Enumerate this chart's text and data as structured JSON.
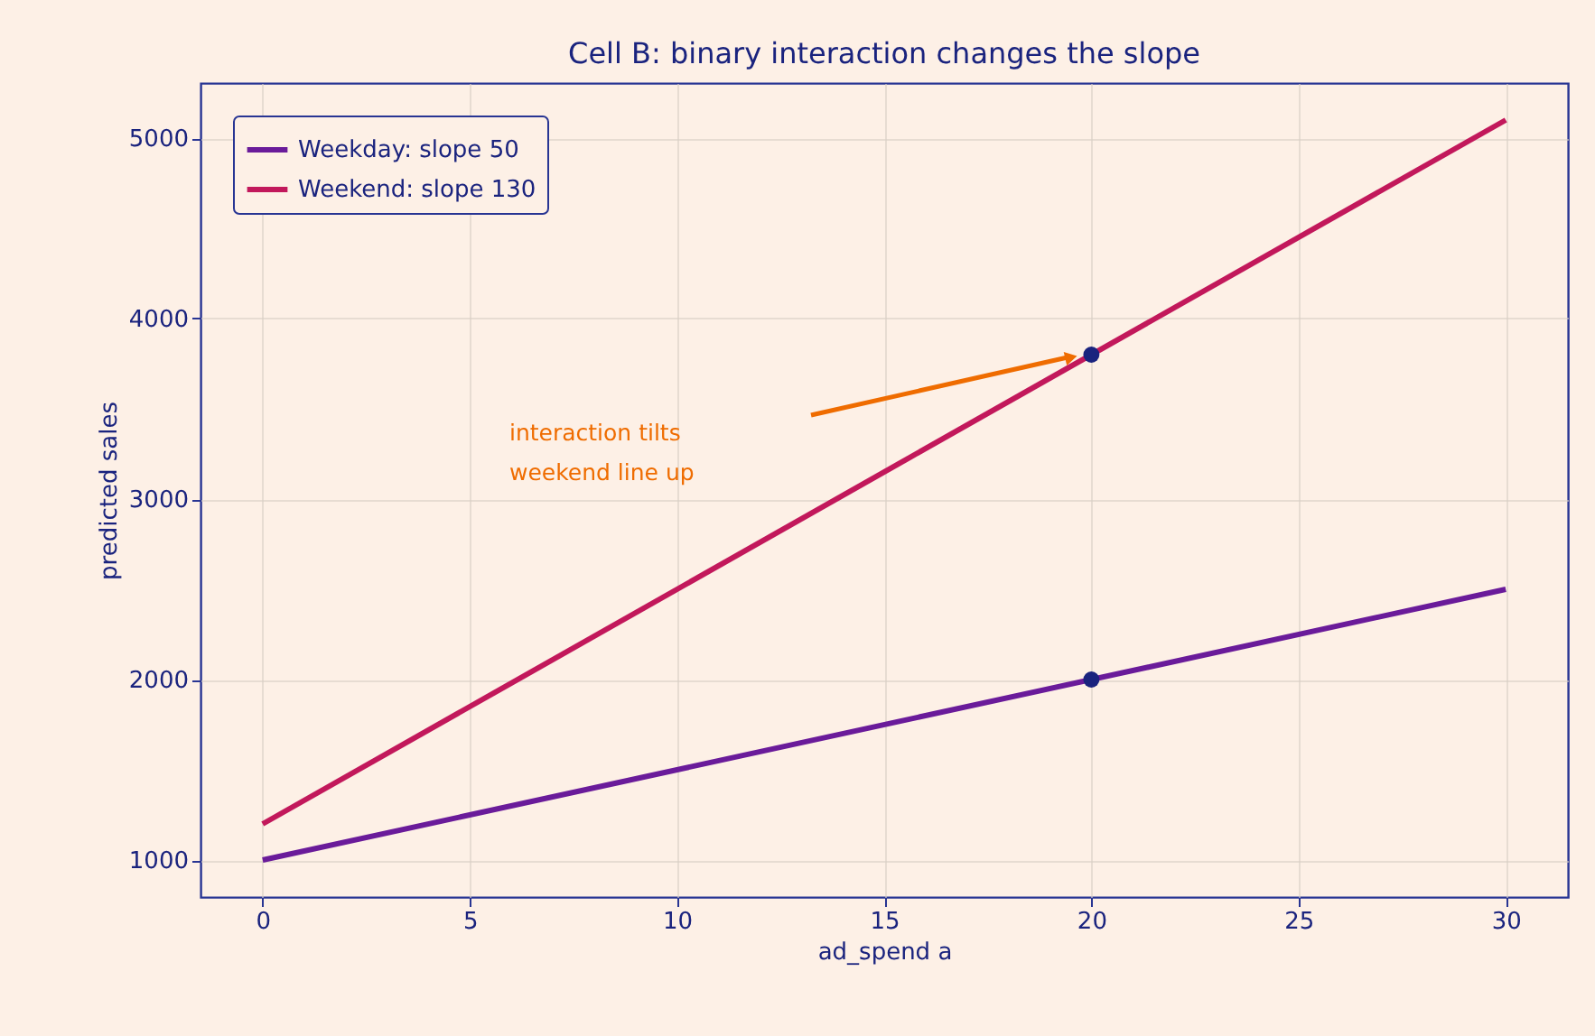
{
  "chart_data": {
    "type": "line",
    "title": "Cell B: binary interaction changes the slope",
    "xlabel": "ad_spend  a",
    "ylabel": "predicted sales",
    "x": [
      0,
      30
    ],
    "series": [
      {
        "name": "Weekday: slope 50",
        "color": "#6a1b9a",
        "values": [
          1000,
          2500
        ]
      },
      {
        "name": "Weekend: slope 130",
        "color": "#c2185b",
        "values": [
          1200,
          5100
        ]
      },
      {
        "type": "scatter",
        "color": "#1a237e",
        "x": [
          20,
          20
        ],
        "values": [
          2000,
          3800
        ],
        "marker": "circle"
      }
    ],
    "annotations": [
      "interaction tilts\nweekend line up"
    ],
    "xlim": [
      -1.5,
      31.5
    ],
    "xticks": [
      0,
      5,
      10,
      15,
      20,
      25,
      30
    ],
    "ylim": [
      795,
      5305
    ],
    "yticks": [
      1000,
      2000,
      3000,
      4000,
      5000
    ],
    "grid": true,
    "legend": "top left",
    "line_style": "solid"
  }
}
